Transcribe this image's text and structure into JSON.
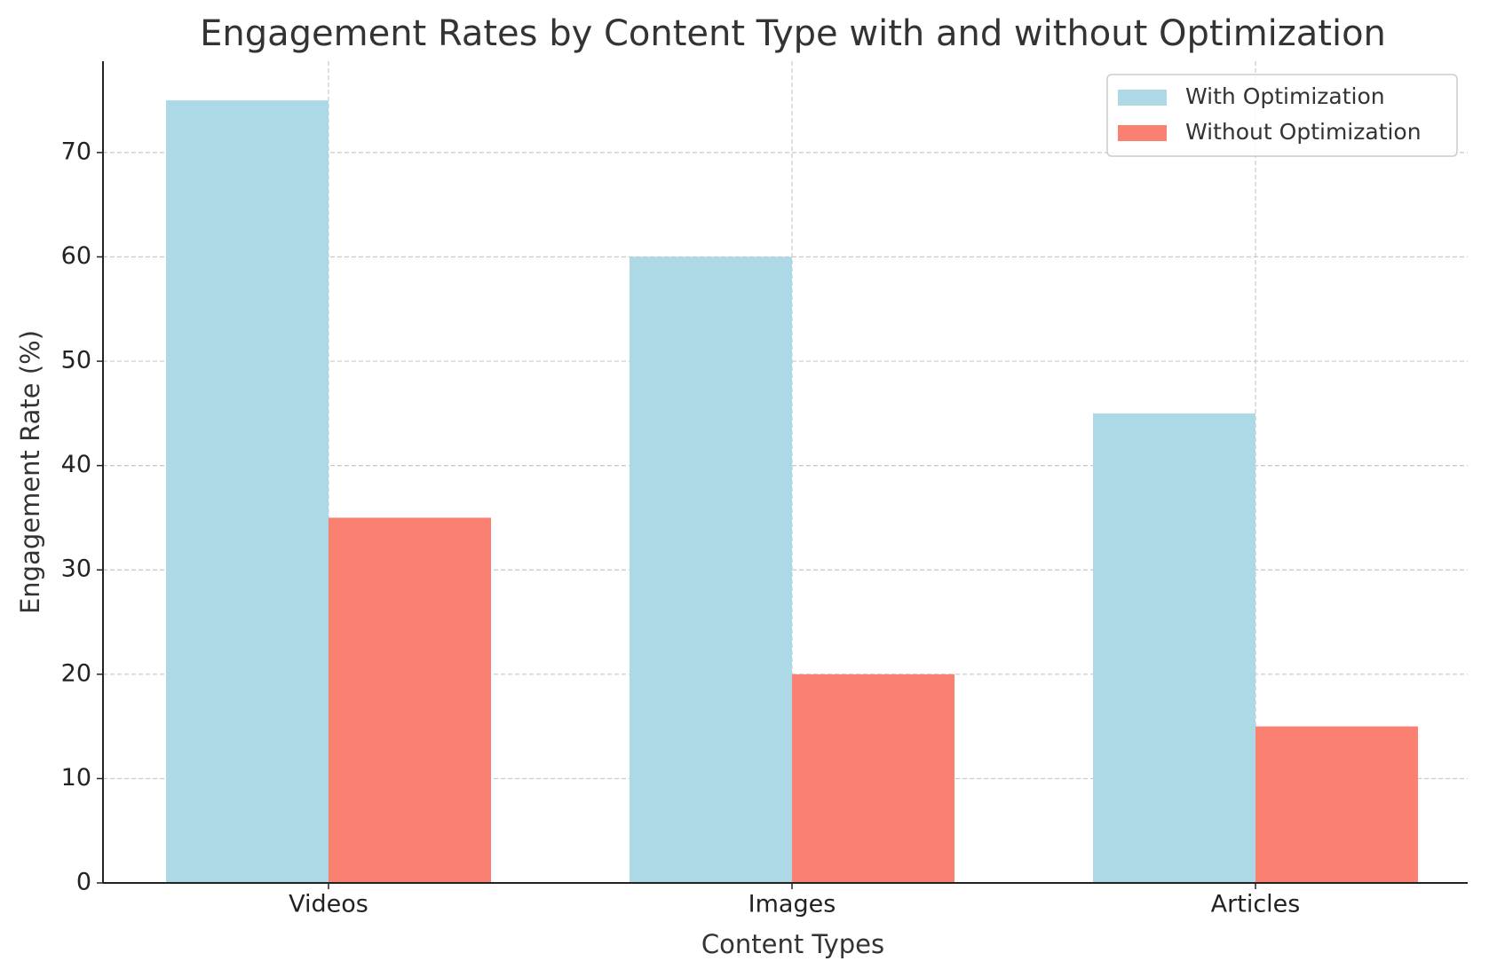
{
  "chart_data": {
    "type": "bar",
    "title": "Engagement Rates by Content Type with and without Optimization",
    "x_label": "Content Types",
    "y_label": "Engagement Rate (%)",
    "categories": [
      "Videos",
      "Images",
      "Articles"
    ],
    "series": [
      {
        "name": "With Optimization",
        "color": "#add8e6",
        "values": [
          75,
          60,
          45
        ]
      },
      {
        "name": "Without Optimization",
        "color": "#fa8072",
        "values": [
          35,
          20,
          15
        ]
      }
    ],
    "ylim": [
      0,
      78.75
    ],
    "yticks": [
      0,
      10,
      20,
      30,
      40,
      50,
      60,
      70
    ],
    "grid": true,
    "legend": "upper right"
  }
}
